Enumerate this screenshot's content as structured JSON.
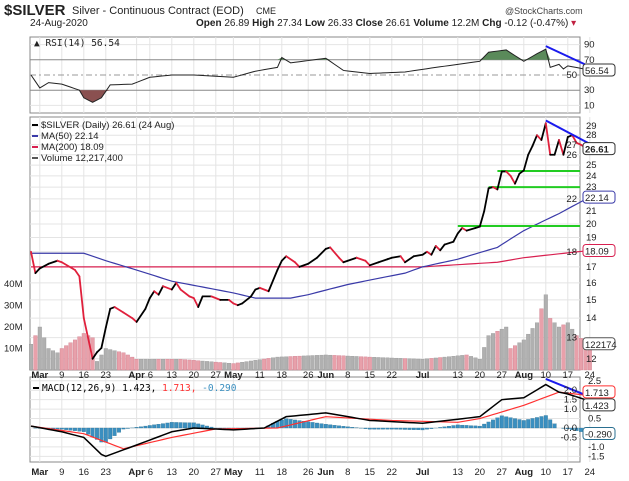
{
  "header": {
    "symbol": "$SILVER",
    "name": "Silver - Continuous Contract (EOD)",
    "exchange": "CME",
    "date": "24-Aug-2020",
    "brand": "@StockCharts.com",
    "open_label": "Open",
    "open": "26.89",
    "high_label": "High",
    "high": "27.34",
    "low_label": "Low",
    "low": "26.33",
    "close_label": "Close",
    "close": "26.61",
    "volume_label": "Volume",
    "volume": "12.2M",
    "chg_label": "Chg",
    "chg": "-0.12 (-0.47%)"
  },
  "colors": {
    "up": "#000000",
    "down": "#e0203c",
    "ma50": "#3a3aa8",
    "ma200": "#d82050",
    "support": "#22cc22",
    "trend": "#1a1aee",
    "rsi_fill_high": "#5a8a5a",
    "rsi_fill_low": "#8a5050",
    "vol_up": "#b0b0b0",
    "vol_down": "#e8a0aa",
    "macd": "#000000",
    "signal": "#ff3030",
    "hist": "#3a8fc0"
  },
  "chart_data": [
    {
      "type": "line",
      "panel": "rsi",
      "legend": "RSI(14) 56.54",
      "last_label": "56.54",
      "ylim": [
        0,
        100
      ],
      "yticks": [
        10,
        30,
        50,
        70,
        90
      ],
      "bands": [
        30,
        70
      ],
      "values": [
        [
          "2020-02-27",
          50
        ],
        [
          "2020-03-02",
          33
        ],
        [
          "2020-03-04",
          40
        ],
        [
          "2020-03-09",
          38
        ],
        [
          "2020-03-13",
          30
        ],
        [
          "2020-03-16",
          20
        ],
        [
          "2020-03-18",
          14
        ],
        [
          "2020-03-20",
          20
        ],
        [
          "2020-03-24",
          37
        ],
        [
          "2020-03-31",
          38
        ],
        [
          "2020-04-06",
          47
        ],
        [
          "2020-04-13",
          50
        ],
        [
          "2020-04-20",
          50
        ],
        [
          "2020-05-01",
          47
        ],
        [
          "2020-05-08",
          55
        ],
        [
          "2020-05-15",
          60
        ],
        [
          "2020-05-18",
          73
        ],
        [
          "2020-05-20",
          66
        ],
        [
          "2020-06-01",
          72
        ],
        [
          "2020-06-05",
          56
        ],
        [
          "2020-06-15",
          52
        ],
        [
          "2020-06-25",
          54
        ],
        [
          "2020-07-06",
          60
        ],
        [
          "2020-07-13",
          64
        ],
        [
          "2020-07-20",
          68
        ],
        [
          "2020-07-22",
          80
        ],
        [
          "2020-07-28",
          83
        ],
        [
          "2020-08-03",
          68
        ],
        [
          "2020-08-06",
          78
        ],
        [
          "2020-08-10",
          84
        ],
        [
          "2020-08-11",
          60
        ],
        [
          "2020-08-13",
          64
        ],
        [
          "2020-08-14",
          58
        ],
        [
          "2020-08-17",
          62
        ],
        [
          "2020-08-24",
          56.54
        ]
      ],
      "trendline": [
        [
          "2020-08-10",
          88
        ],
        [
          "2020-08-24",
          61
        ]
      ]
    },
    {
      "type": "line",
      "panel": "price",
      "scale": "log",
      "ylim": [
        11.5,
        30
      ],
      "yticks": [
        12,
        13,
        14,
        15,
        16,
        17,
        18,
        19,
        20,
        21,
        22,
        23,
        24,
        25,
        26,
        27,
        28,
        29
      ],
      "legend": [
        {
          "key": "price",
          "text": "$SILVER (Daily) 26.61 (24 Aug)"
        },
        {
          "key": "ma50",
          "text": "MA(50) 22.14"
        },
        {
          "key": "ma200",
          "text": "MA(200) 18.09"
        },
        {
          "key": "volume",
          "text": "Volume 12,217,400"
        }
      ],
      "last_labels": {
        "price": "26.61",
        "ma50": "22.14",
        "ma200": "18.09",
        "volume": "122174"
      },
      "close": [
        [
          "2020-02-27",
          18.0
        ],
        [
          "2020-02-28",
          16.6
        ],
        [
          "2020-03-02",
          16.9
        ],
        [
          "2020-03-04",
          17.2
        ],
        [
          "2020-03-06",
          17.4
        ],
        [
          "2020-03-09",
          17.3
        ],
        [
          "2020-03-12",
          16.8
        ],
        [
          "2020-03-13",
          16.4
        ],
        [
          "2020-03-16",
          14.0
        ],
        [
          "2020-03-18",
          12.0
        ],
        [
          "2020-03-19",
          12.3
        ],
        [
          "2020-03-20",
          12.5
        ],
        [
          "2020-03-23",
          13.5
        ],
        [
          "2020-03-24",
          14.5
        ],
        [
          "2020-03-25",
          14.6
        ],
        [
          "2020-03-27",
          14.3
        ],
        [
          "2020-03-31",
          14.0
        ],
        [
          "2020-04-01",
          13.8
        ],
        [
          "2020-04-03",
          14.5
        ],
        [
          "2020-04-06",
          15.1
        ],
        [
          "2020-04-07",
          15.5
        ],
        [
          "2020-04-08",
          15.3
        ],
        [
          "2020-04-09",
          15.8
        ],
        [
          "2020-04-13",
          15.6
        ],
        [
          "2020-04-14",
          16.0
        ],
        [
          "2020-04-15",
          15.6
        ],
        [
          "2020-04-17",
          15.2
        ],
        [
          "2020-04-20",
          15.1
        ],
        [
          "2020-04-21",
          14.6
        ],
        [
          "2020-04-22",
          15.2
        ],
        [
          "2020-04-24",
          15.2
        ],
        [
          "2020-04-28",
          15.0
        ],
        [
          "2020-04-30",
          15.0
        ],
        [
          "2020-05-01",
          14.8
        ],
        [
          "2020-05-04",
          14.7
        ],
        [
          "2020-05-05",
          14.8
        ],
        [
          "2020-05-07",
          15.2
        ],
        [
          "2020-05-08",
          15.6
        ],
        [
          "2020-05-11",
          15.7
        ],
        [
          "2020-05-13",
          15.5
        ],
        [
          "2020-05-15",
          16.8
        ],
        [
          "2020-05-18",
          17.4
        ],
        [
          "2020-05-19",
          17.7
        ],
        [
          "2020-05-21",
          17.3
        ],
        [
          "2020-05-22",
          17.0
        ],
        [
          "2020-05-26",
          17.2
        ],
        [
          "2020-05-28",
          17.6
        ],
        [
          "2020-06-01",
          18.2
        ],
        [
          "2020-06-02",
          18.3
        ],
        [
          "2020-06-04",
          17.6
        ],
        [
          "2020-06-05",
          17.3
        ],
        [
          "2020-06-08",
          17.4
        ],
        [
          "2020-06-10",
          17.6
        ],
        [
          "2020-06-12",
          17.4
        ],
        [
          "2020-06-15",
          17.1
        ],
        [
          "2020-06-17",
          17.3
        ],
        [
          "2020-06-19",
          17.5
        ],
        [
          "2020-06-22",
          17.6
        ],
        [
          "2020-06-24",
          17.7
        ],
        [
          "2020-06-25",
          17.3
        ],
        [
          "2020-06-29",
          17.7
        ],
        [
          "2020-07-01",
          17.8
        ],
        [
          "2020-07-02",
          18.0
        ],
        [
          "2020-07-03",
          17.8
        ],
        [
          "2020-07-06",
          18.4
        ],
        [
          "2020-07-07",
          18.1
        ],
        [
          "2020-07-08",
          18.5
        ],
        [
          "2020-07-10",
          18.7
        ],
        [
          "2020-07-13",
          19.3
        ],
        [
          "2020-07-14",
          19.7
        ],
        [
          "2020-07-15",
          19.5
        ],
        [
          "2020-07-17",
          19.7
        ],
        [
          "2020-07-20",
          19.8
        ],
        [
          "2020-07-21",
          21.0
        ],
        [
          "2020-07-22",
          22.9
        ],
        [
          "2020-07-23",
          23.0
        ],
        [
          "2020-07-24",
          22.8
        ],
        [
          "2020-07-27",
          24.4
        ],
        [
          "2020-07-28",
          24.4
        ],
        [
          "2020-07-29",
          24.0
        ],
        [
          "2020-07-30",
          23.3
        ],
        [
          "2020-07-31",
          24.2
        ],
        [
          "2020-08-03",
          24.5
        ],
        [
          "2020-08-04",
          26.0
        ],
        [
          "2020-08-05",
          26.9
        ],
        [
          "2020-08-06",
          28.0
        ],
        [
          "2020-08-07",
          27.5
        ],
        [
          "2020-08-10",
          29.3
        ],
        [
          "2020-08-11",
          26.0
        ],
        [
          "2020-08-12",
          26.0
        ],
        [
          "2020-08-13",
          27.5
        ],
        [
          "2020-08-14",
          26.0
        ],
        [
          "2020-08-17",
          27.8
        ],
        [
          "2020-08-18",
          28.0
        ],
        [
          "2020-08-19",
          27.2
        ],
        [
          "2020-08-20",
          27.0
        ],
        [
          "2020-08-21",
          26.7
        ],
        [
          "2020-08-24",
          26.61
        ]
      ],
      "ma50": [
        [
          "2020-02-27",
          17.9
        ],
        [
          "2020-03-16",
          17.9
        ],
        [
          "2020-03-23",
          17.4
        ],
        [
          "2020-04-13",
          16.1
        ],
        [
          "2020-05-01",
          15.4
        ],
        [
          "2020-05-08",
          15.1
        ],
        [
          "2020-05-20",
          15.1
        ],
        [
          "2020-05-26",
          15.3
        ],
        [
          "2020-06-08",
          15.9
        ],
        [
          "2020-06-25",
          16.6
        ],
        [
          "2020-07-01",
          17.0
        ],
        [
          "2020-07-13",
          17.5
        ],
        [
          "2020-07-24",
          18.3
        ],
        [
          "2020-08-03",
          19.5
        ],
        [
          "2020-08-13",
          20.8
        ],
        [
          "2020-08-24",
          22.14
        ]
      ],
      "ma200": [
        [
          "2020-02-27",
          17.0
        ],
        [
          "2020-06-01",
          17.0
        ],
        [
          "2020-07-01",
          17.0
        ],
        [
          "2020-07-24",
          17.3
        ],
        [
          "2020-08-03",
          17.6
        ],
        [
          "2020-08-24",
          18.09
        ]
      ],
      "support": [
        {
          "value": 19.85,
          "from": "2020-07-13"
        },
        {
          "value": 23.0,
          "from": "2020-07-22"
        },
        {
          "value": 24.45,
          "from": "2020-07-24"
        }
      ],
      "trendline": [
        [
          "2020-08-10",
          29.6
        ],
        [
          "2020-08-24",
          27.1
        ]
      ],
      "volume_yticks": [
        {
          "v": 10,
          "label": "10M"
        },
        {
          "v": 20,
          "label": "20M"
        },
        {
          "v": 30,
          "label": "30M"
        },
        {
          "v": 40,
          "label": "40M"
        }
      ],
      "volume_millions": [
        [
          "2020-02-27",
          12
        ],
        [
          "2020-03-02",
          20
        ],
        [
          "2020-03-04",
          10
        ],
        [
          "2020-03-06",
          8
        ],
        [
          "2020-03-09",
          10
        ],
        [
          "2020-03-12",
          14
        ],
        [
          "2020-03-16",
          17
        ],
        [
          "2020-03-18",
          15
        ],
        [
          "2020-03-19",
          4
        ],
        [
          "2020-03-23",
          10
        ],
        [
          "2020-03-27",
          8
        ],
        [
          "2020-04-01",
          5
        ],
        [
          "2020-04-15",
          5
        ],
        [
          "2020-05-01",
          3
        ],
        [
          "2020-05-15",
          6
        ],
        [
          "2020-06-01",
          7
        ],
        [
          "2020-06-15",
          6
        ],
        [
          "2020-07-01",
          5
        ],
        [
          "2020-07-15",
          7
        ],
        [
          "2020-07-20",
          5
        ],
        [
          "2020-07-22",
          16
        ],
        [
          "2020-07-24",
          18
        ],
        [
          "2020-07-28",
          20
        ],
        [
          "2020-07-29",
          10
        ],
        [
          "2020-08-03",
          14
        ],
        [
          "2020-08-06",
          22
        ],
        [
          "2020-08-10",
          35
        ],
        [
          "2020-08-11",
          24
        ],
        [
          "2020-08-13",
          20
        ],
        [
          "2020-08-17",
          22
        ],
        [
          "2020-08-19",
          16
        ],
        [
          "2020-08-24",
          12.2
        ]
      ]
    },
    {
      "type": "line",
      "panel": "macd",
      "legend_name": "MACD(12,26,9)",
      "legend_macd": "1.423",
      "legend_signal": "1.713",
      "legend_hist": "-0.290",
      "last_labels": {
        "macd": "1.423",
        "signal": "1.713",
        "hist": "-0.290"
      },
      "ylim": [
        -1.8,
        2.7
      ],
      "yticks": [
        -1.5,
        -1.0,
        -0.5,
        0.0,
        0.5,
        1.0,
        1.5,
        2.0,
        2.5
      ],
      "macd": [
        [
          "2020-02-27",
          0.1
        ],
        [
          "2020-03-09",
          -0.2
        ],
        [
          "2020-03-16",
          -0.5
        ],
        [
          "2020-03-20",
          -1.4
        ],
        [
          "2020-03-23",
          -1.5
        ],
        [
          "2020-04-01",
          -0.9
        ],
        [
          "2020-04-13",
          -0.2
        ],
        [
          "2020-04-20",
          0.0
        ],
        [
          "2020-05-01",
          -0.1
        ],
        [
          "2020-05-12",
          0.0
        ],
        [
          "2020-05-19",
          0.6
        ],
        [
          "2020-06-01",
          0.8
        ],
        [
          "2020-06-15",
          0.4
        ],
        [
          "2020-07-01",
          0.25
        ],
        [
          "2020-07-20",
          0.6
        ],
        [
          "2020-07-27",
          1.5
        ],
        [
          "2020-08-03",
          1.6
        ],
        [
          "2020-08-10",
          2.3
        ],
        [
          "2020-08-13",
          1.9
        ],
        [
          "2020-08-17",
          1.8
        ],
        [
          "2020-08-24",
          1.423
        ]
      ],
      "signal": [
        [
          "2020-02-27",
          0.1
        ],
        [
          "2020-03-16",
          -0.3
        ],
        [
          "2020-03-27",
          -1.1
        ],
        [
          "2020-04-13",
          -0.5
        ],
        [
          "2020-04-27",
          -0.05
        ],
        [
          "2020-05-15",
          0.0
        ],
        [
          "2020-06-01",
          0.6
        ],
        [
          "2020-06-22",
          0.4
        ],
        [
          "2020-07-13",
          0.3
        ],
        [
          "2020-07-20",
          0.5
        ],
        [
          "2020-08-03",
          1.2
        ],
        [
          "2020-08-13",
          1.9
        ],
        [
          "2020-08-24",
          1.713
        ]
      ],
      "trendline": [
        [
          "2020-08-10",
          2.6
        ],
        [
          "2020-08-24",
          1.65
        ]
      ]
    }
  ],
  "xticks": [
    {
      "d": "2020-03-02",
      "label": "Mar",
      "bold": true
    },
    {
      "d": "2020-03-09",
      "label": "9"
    },
    {
      "d": "2020-03-16",
      "label": "16"
    },
    {
      "d": "2020-03-23",
      "label": "23"
    },
    {
      "d": "2020-04-01",
      "label": "Apr",
      "bold": true
    },
    {
      "d": "2020-04-06",
      "label": "6"
    },
    {
      "d": "2020-04-13",
      "label": "13"
    },
    {
      "d": "2020-04-20",
      "label": "20"
    },
    {
      "d": "2020-04-27",
      "label": "27"
    },
    {
      "d": "2020-05-01",
      "label": "May",
      "bold": true
    },
    {
      "d": "2020-05-11",
      "label": "11"
    },
    {
      "d": "2020-05-18",
      "label": "18"
    },
    {
      "d": "2020-05-26",
      "label": "26"
    },
    {
      "d": "2020-06-01",
      "label": "Jun",
      "bold": true
    },
    {
      "d": "2020-06-08",
      "label": "8"
    },
    {
      "d": "2020-06-15",
      "label": "15"
    },
    {
      "d": "2020-06-22",
      "label": "22"
    },
    {
      "d": "2020-07-01",
      "label": "Jul",
      "bold": true
    },
    {
      "d": "2020-07-13",
      "label": "13"
    },
    {
      "d": "2020-07-20",
      "label": "20"
    },
    {
      "d": "2020-07-27",
      "label": "27"
    },
    {
      "d": "2020-08-03",
      "label": "Aug",
      "bold": true
    },
    {
      "d": "2020-08-10",
      "label": "10"
    },
    {
      "d": "2020-08-17",
      "label": "17"
    },
    {
      "d": "2020-08-24",
      "label": "24"
    }
  ]
}
